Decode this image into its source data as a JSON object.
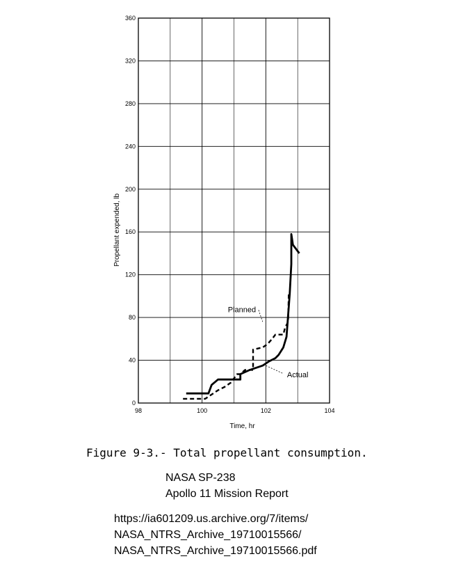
{
  "chart_data": {
    "type": "line",
    "title": "",
    "xlabel": "Time, hr",
    "ylabel": "Propellant expended, lb",
    "xlim": [
      98,
      104
    ],
    "ylim": [
      0,
      360
    ],
    "xticks": [
      98,
      100,
      102,
      104
    ],
    "yticks": [
      0,
      40,
      80,
      120,
      160,
      200,
      240,
      280,
      320,
      360
    ],
    "grid": true,
    "series": [
      {
        "name": "Actual",
        "style": "solid",
        "x": [
          99.5,
          100.2,
          100.3,
          100.5,
          100.8,
          101.2,
          101.2,
          101.5,
          101.9,
          102.1,
          102.3,
          102.4,
          102.55,
          102.65,
          102.7,
          102.75,
          102.8,
          102.8,
          102.85,
          103.05
        ],
        "y": [
          9,
          9,
          17,
          22,
          22,
          22,
          27,
          31,
          35,
          39,
          42,
          45,
          52,
          62,
          82,
          102,
          130,
          158,
          148,
          140
        ]
      },
      {
        "name": "Planned",
        "style": "dashed",
        "x": [
          99.4,
          100.0,
          100.1,
          100.3,
          100.5,
          100.7,
          100.9,
          101.1,
          101.2,
          101.35,
          101.6,
          101.6,
          101.9,
          102.05,
          102.2,
          102.3,
          102.55,
          102.6,
          102.7,
          102.72
        ],
        "y": [
          4,
          4,
          4,
          8,
          12,
          15,
          19,
          27,
          27,
          31,
          31,
          50,
          52,
          55,
          60,
          64,
          64,
          70,
          76,
          102
        ]
      }
    ],
    "annotations": [
      {
        "text": "Planned",
        "x": 101.25,
        "y": 85,
        "points_to": [
          101.9,
          76
        ]
      },
      {
        "text": "Actual",
        "x": 103.0,
        "y": 24,
        "points_to": [
          102.0,
          35
        ]
      }
    ]
  },
  "caption": "Figure 9-3.- Total propellant consumption.",
  "source": {
    "line1": "NASA SP-238",
    "line2": "Apollo 11 Mission Report"
  },
  "url": {
    "line1": "https://ia601209.us.archive.org/7/items/",
    "line2": "NASA_NTRS_Archive_19710015566/",
    "line3": "NASA_NTRS_Archive_19710015566.pdf"
  }
}
